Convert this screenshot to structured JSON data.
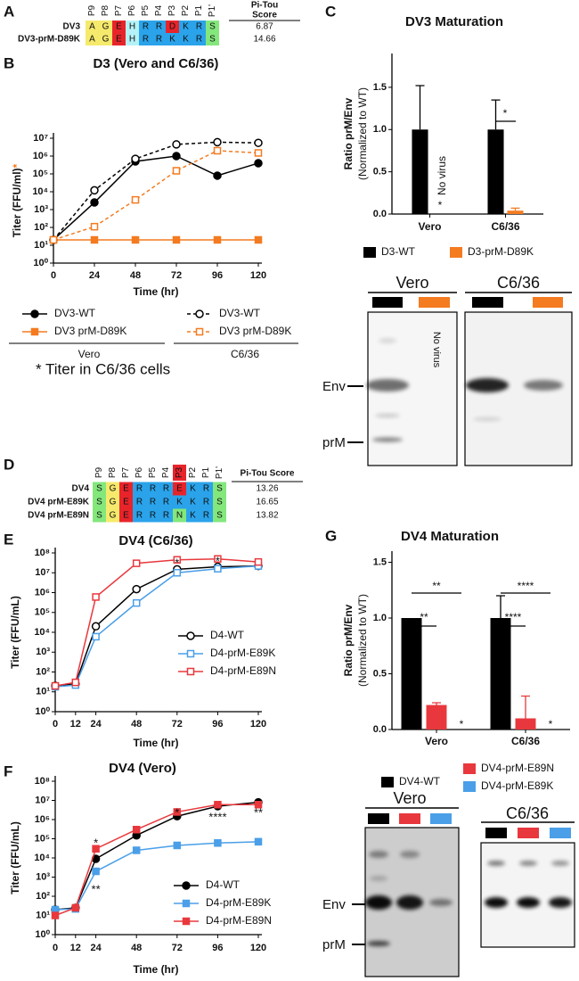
{
  "panel_labels": [
    "A",
    "B",
    "C",
    "D",
    "E",
    "F",
    "G"
  ],
  "sequence_tables": [
    {
      "positions": [
        "P9",
        "P8",
        "P7",
        "P6",
        "P5",
        "P4",
        "P3",
        "P2",
        "P1",
        "P1'"
      ],
      "score_header": [
        "Pi-Tou",
        "Score"
      ],
      "rows": [
        {
          "name": "DV3",
          "residues": [
            "A",
            "G",
            "E",
            "H",
            "R",
            "R",
            "D",
            "K",
            "R",
            "S"
          ],
          "score": 6.87
        },
        {
          "name": "DV3-prM-D89K",
          "residues": [
            "A",
            "G",
            "E",
            "H",
            "R",
            "R",
            "K",
            "K",
            "R",
            "S"
          ],
          "score": 14.66
        }
      ]
    },
    {
      "positions": [
        "P9",
        "P8",
        "P7",
        "P6",
        "P5",
        "P4",
        "P3",
        "P2",
        "P1",
        "P1'"
      ],
      "score_header": [
        "Pi-Tou Score"
      ],
      "rows": [
        {
          "name": "DV4",
          "residues": [
            "S",
            "G",
            "E",
            "R",
            "R",
            "R",
            "E",
            "K",
            "R",
            "S"
          ],
          "score": 13.26
        },
        {
          "name": "DV4 prM-E89K",
          "residues": [
            "S",
            "G",
            "E",
            "R",
            "R",
            "R",
            "K",
            "K",
            "R",
            "S"
          ],
          "score": 16.65
        },
        {
          "name": "DV4 prM-E89N",
          "residues": [
            "S",
            "G",
            "E",
            "R",
            "R",
            "R",
            "N",
            "K",
            "R",
            "S"
          ],
          "score": 13.82
        }
      ]
    }
  ],
  "chart_data": [
    {
      "type": "line",
      "title": "D3 (Vero and C6/36)",
      "y_label": "Titer (FFU/ml)",
      "y_label_mark": "*",
      "y_label_mark_color": "#f47b20",
      "x_label": "Time (hr)",
      "x": [
        0,
        24,
        48,
        72,
        96,
        120
      ],
      "xlim": [
        0,
        120
      ],
      "xticks": [
        0,
        24,
        48,
        72,
        96,
        120
      ],
      "log_y": true,
      "ylim": [
        1,
        10000000
      ],
      "yticks": [
        {
          "value": 1,
          "label": "10⁰"
        },
        {
          "value": 10,
          "label": "10¹"
        },
        {
          "value": 100,
          "label": "10²"
        },
        {
          "value": 1000,
          "label": "10³"
        },
        {
          "value": 10000,
          "label": "10⁴"
        },
        {
          "value": 100000,
          "label": "10⁵"
        },
        {
          "value": 1000000,
          "label": "10⁶"
        },
        {
          "value": 10000000,
          "label": "10⁷"
        }
      ],
      "series": [
        {
          "name": "DV3-WT",
          "color": "#000000",
          "marker": "circle",
          "filled": true,
          "dashed": false,
          "values": [
            20,
            2500,
            500000,
            1000000,
            80000,
            400000
          ]
        },
        {
          "name": "DV3-WT",
          "color": "#000000",
          "marker": "circle",
          "filled": false,
          "dashed": true,
          "values": [
            20,
            12000,
            700000,
            4500000,
            6000000,
            5500000
          ]
        },
        {
          "name": "DV3 prM-D89K",
          "color": "#f47b20",
          "marker": "square",
          "filled": true,
          "dashed": false,
          "values": [
            20,
            20,
            20,
            20,
            20,
            20
          ]
        },
        {
          "name": "DV3 prM-D89K",
          "color": "#f47b20",
          "marker": "square",
          "filled": false,
          "dashed": true,
          "values": [
            20,
            110,
            3500,
            150000,
            2000000,
            1500000
          ]
        }
      ],
      "legend_groups": [
        "Vero",
        "C6/36"
      ],
      "footnote": "* Titer in C6/36 cells",
      "footnote_color": "#f47b20"
    },
    {
      "type": "bar",
      "title": "DV3 Maturation",
      "y_label": "Ratio prM/Env",
      "y_label_2": "(Normalized to WT)",
      "categories": [
        "Vero",
        "C6/36"
      ],
      "ylim": [
        0,
        1.9
      ],
      "yticks": [
        {
          "value": 0,
          "label": "0.0"
        },
        0.5,
        {
          "value": 1,
          "label": "1.0"
        },
        1.5
      ],
      "series": [
        {
          "name": "D3-WT",
          "color": "#000000",
          "values": [
            1,
            1
          ],
          "errors": [
            0.52,
            0.35
          ]
        },
        {
          "name": "D3-prM-D89K",
          "color": "#f47b20",
          "values": [
            null,
            0.04
          ],
          "errors": [
            null,
            0.03
          ]
        }
      ],
      "annotations": [
        {
          "text": "*",
          "color": "#f47b20"
        },
        {
          "text": "No virus",
          "color": "#f47b20"
        },
        {
          "text": "*",
          "color": "#000000"
        }
      ]
    },
    {
      "type": "line",
      "title": "DV4 (C6/36)",
      "y_label": "Titer (FFU/mL)",
      "x_label": "Time (hr)",
      "x": [
        0,
        12,
        24,
        48,
        72,
        96,
        120
      ],
      "xlim": [
        0,
        120
      ],
      "xticks": [
        0,
        12,
        24,
        48,
        72,
        96,
        120
      ],
      "log_y": true,
      "ylim": [
        1,
        100000000
      ],
      "yticks": [
        {
          "value": 1,
          "label": "10⁰"
        },
        {
          "value": 10,
          "label": "10¹"
        },
        {
          "value": 100,
          "label": "10²"
        },
        {
          "value": 1000,
          "label": "10³"
        },
        {
          "value": 10000,
          "label": "10⁴"
        },
        {
          "value": 100000,
          "label": "10⁵"
        },
        {
          "value": 1000000,
          "label": "10⁶"
        },
        {
          "value": 10000000,
          "label": "10⁷"
        },
        {
          "value": 100000000,
          "label": "10⁸"
        }
      ],
      "series": [
        {
          "name": "D4-WT",
          "color": "#000000",
          "marker": "circle",
          "filled": false,
          "dashed": false,
          "values": [
            20,
            25,
            20000,
            1500000,
            15000000,
            20000000,
            22000000
          ]
        },
        {
          "name": "D4-prM-E89K",
          "color": "#4a9fe8",
          "marker": "square",
          "filled": false,
          "dashed": false,
          "values": [
            18,
            22,
            6000,
            300000,
            10000000,
            16000000,
            22000000
          ]
        },
        {
          "name": "D4-prM-E89N",
          "color": "#e8383d",
          "marker": "square",
          "filled": false,
          "dashed": false,
          "values": [
            20,
            30,
            600000,
            30000000,
            45000000,
            50000000,
            35000000
          ]
        }
      ],
      "annotations": [
        {
          "text": "*",
          "x": 72,
          "color": "#e8383d"
        },
        {
          "text": "*",
          "x": 96,
          "color": "#e8383d"
        }
      ]
    },
    {
      "type": "line",
      "title": "DV4 (Vero)",
      "y_label": "Titer (FFU/mL)",
      "x_label": "Time (hr)",
      "x": [
        0,
        12,
        24,
        48,
        72,
        96,
        120
      ],
      "xlim": [
        0,
        120
      ],
      "xticks": [
        0,
        12,
        24,
        48,
        72,
        96,
        120
      ],
      "log_y": true,
      "ylim": [
        1,
        100000000
      ],
      "yticks": [
        {
          "value": 1,
          "label": "10⁰"
        },
        {
          "value": 10,
          "label": "10¹"
        },
        {
          "value": 100,
          "label": "10²"
        },
        {
          "value": 1000,
          "label": "10³"
        },
        {
          "value": 10000,
          "label": "10⁴"
        },
        {
          "value": 100000,
          "label": "10⁵"
        },
        {
          "value": 1000000,
          "label": "10⁶"
        },
        {
          "value": 10000000,
          "label": "10⁷"
        },
        {
          "value": 100000000,
          "label": "10⁸"
        }
      ],
      "series": [
        {
          "name": "D4-WT",
          "color": "#000000",
          "marker": "circle",
          "filled": true,
          "dashed": false,
          "values": [
            20,
            25,
            9000,
            150000,
            1500000,
            5000000,
            8000000
          ]
        },
        {
          "name": "D4-prM-E89K",
          "color": "#4a9fe8",
          "marker": "square",
          "filled": true,
          "dashed": false,
          "values": [
            20,
            22,
            2000,
            25000,
            45000,
            60000,
            70000
          ]
        },
        {
          "name": "D4-prM-E89N",
          "color": "#e8383d",
          "marker": "square",
          "filled": true,
          "dashed": false,
          "values": [
            10,
            25,
            30000,
            300000,
            2500000,
            6000000,
            6000000
          ]
        }
      ],
      "annotations": [
        {
          "text": "*",
          "x": 24,
          "color": "#e8383d"
        },
        {
          "text": "**",
          "x": 24,
          "color": "#4a9fe8"
        },
        {
          "text": "*",
          "x": 72,
          "color": "#4a9fe8"
        },
        {
          "text": "****",
          "x": 96,
          "color": "#4a9fe8"
        },
        {
          "text": "**",
          "x": 120,
          "color": "#4a9fe8"
        }
      ]
    },
    {
      "type": "bar",
      "title": "DV4 Maturation",
      "y_label": "Ratio prM/Env",
      "y_label_2": "(Normalized to WT)",
      "categories": [
        "Vero",
        "C6/36"
      ],
      "ylim": [
        0,
        1.6
      ],
      "yticks": [
        {
          "value": 0,
          "label": "0.0"
        },
        0.5,
        {
          "value": 1,
          "label": "1.0"
        },
        1.5
      ],
      "series": [
        {
          "name": "DV4-WT",
          "color": "#000000",
          "values": [
            1,
            1
          ],
          "errors": [
            0,
            0.2
          ]
        },
        {
          "name": "DV4-prM-E89N",
          "color": "#e8383d",
          "values": [
            0.22,
            0.1
          ],
          "errors": [
            0.02,
            0.2
          ]
        },
        {
          "name": "DV4-prM-E89K",
          "color": "#4a9fe8",
          "values": [
            0,
            0
          ],
          "errors": [
            null,
            null
          ]
        }
      ],
      "annotations": [
        {
          "text": "**",
          "color": "#000000"
        },
        {
          "text": "**",
          "color": "#000000"
        },
        {
          "text": "****",
          "color": "#000000"
        },
        {
          "text": "****",
          "color": "#000000"
        },
        {
          "text": "*",
          "color": "#4a9fe8"
        },
        {
          "text": "*",
          "color": "#4a9fe8"
        }
      ]
    }
  ],
  "gels": [
    {
      "panels": [
        "Vero",
        "C6/36"
      ],
      "note": "No virus",
      "markers": [
        "Env",
        "prM"
      ]
    },
    {
      "panels": [
        "Vero",
        "C6/36"
      ],
      "markers": [
        "Env",
        "prM"
      ]
    }
  ]
}
